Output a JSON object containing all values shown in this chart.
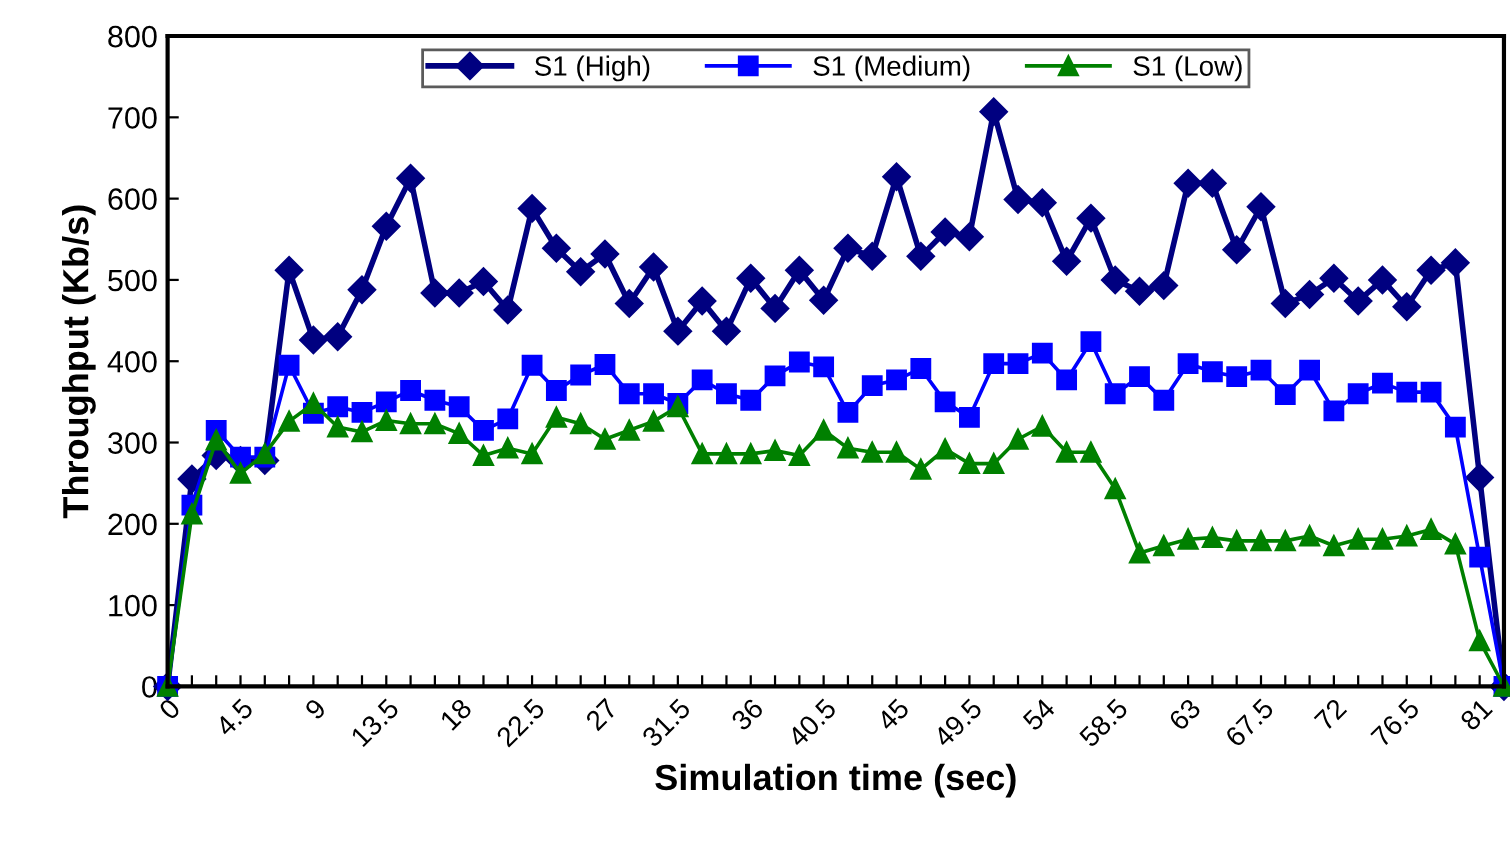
{
  "chart_data": {
    "type": "line",
    "xlabel": "Simulation time (sec)",
    "ylabel": "Throughput (Kb/s)",
    "categories": [
      "0",
      null,
      null,
      "4.5",
      null,
      null,
      "9",
      null,
      null,
      "13.5",
      null,
      null,
      "18",
      null,
      null,
      "22.5",
      null,
      null,
      "27",
      null,
      null,
      "31.5",
      null,
      null,
      "36",
      null,
      null,
      "40.5",
      null,
      null,
      "45",
      null,
      null,
      "49.5",
      null,
      null,
      "54",
      null,
      null,
      "58.5",
      null,
      null,
      "63",
      null,
      null,
      "67.5",
      null,
      null,
      "72",
      null,
      null,
      "76.5",
      null,
      null,
      "81",
      null
    ],
    "ylim": [
      0,
      800
    ],
    "yticks": [
      0,
      100,
      200,
      300,
      400,
      500,
      600,
      700,
      800
    ],
    "legend": "top",
    "grid": false,
    "line_style": "solid",
    "series": [
      {
        "name": "S1 (High)",
        "color": "#000080",
        "marker": "diamond",
        "values": [
          0,
          255,
          284,
          278,
          278,
          512,
          426,
          430,
          488,
          566,
          625,
          484,
          484,
          498,
          463,
          588,
          539,
          510,
          532,
          471,
          516,
          437,
          474,
          437,
          502,
          465,
          512,
          475,
          539,
          529,
          627,
          529,
          559,
          553,
          707,
          599,
          595,
          523,
          576,
          500,
          486,
          493,
          619,
          619,
          537,
          590,
          471,
          482,
          502,
          474,
          500,
          467,
          512,
          521,
          257,
          0
        ]
      },
      {
        "name": "S1 (Medium)",
        "color": "#0000ff",
        "marker": "square",
        "values": [
          0,
          223,
          315,
          282,
          282,
          395,
          336,
          344,
          337,
          350,
          364,
          352,
          344,
          315,
          329,
          395,
          364,
          383,
          396,
          360,
          360,
          348,
          377,
          360,
          352,
          382,
          399,
          393,
          337,
          370,
          377,
          391,
          350,
          331,
          397,
          397,
          410,
          377,
          424,
          360,
          381,
          352,
          397,
          387,
          381,
          389,
          359,
          389,
          339,
          360,
          373,
          362,
          362,
          319,
          159,
          0
        ]
      },
      {
        "name": "S1 (Low)",
        "color": "#008000",
        "marker": "triangle",
        "values": [
          0,
          212,
          303,
          262,
          286,
          326,
          348,
          319,
          313,
          327,
          323,
          323,
          311,
          284,
          293,
          286,
          331,
          323,
          304,
          315,
          326,
          344,
          286,
          286,
          286,
          290,
          284,
          315,
          293,
          288,
          288,
          267,
          292,
          274,
          274,
          304,
          320,
          288,
          288,
          243,
          164,
          173,
          181,
          183,
          179,
          179,
          179,
          185,
          173,
          181,
          181,
          185,
          193,
          175,
          56,
          0
        ]
      }
    ]
  }
}
